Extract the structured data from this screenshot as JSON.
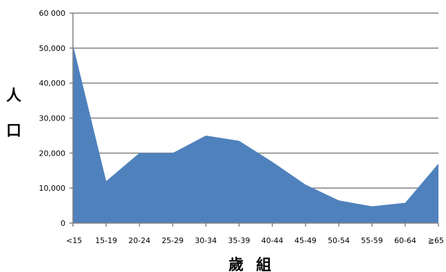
{
  "chart_data": {
    "type": "area",
    "categories": [
      "<15",
      "15-19",
      "20-24",
      "25-29",
      "30-34",
      "35-39",
      "40-44",
      "45-49",
      "50-54",
      "55-59",
      "60-64",
      "≧65"
    ],
    "series": [
      {
        "values": [
          51000,
          12000,
          20000,
          20000,
          25000,
          23500,
          17500,
          11000,
          6500,
          4800,
          5800,
          17000
        ]
      }
    ],
    "y_ticks": [
      {
        "value": 0,
        "label": "0"
      },
      {
        "value": 10000,
        "label": "10,000"
      },
      {
        "value": 20000,
        "label": "20,000"
      },
      {
        "value": 30000,
        "label": "30,000"
      },
      {
        "value": 40000,
        "label": "40,000"
      },
      {
        "value": 50000,
        "label": "50,000"
      },
      {
        "value": 60000,
        "label": "60 000"
      }
    ],
    "ylim": [
      0,
      60000
    ],
    "ylabel": "人口",
    "xlabel": "歲組",
    "grid": true,
    "colors": {
      "area": "#4f81bd",
      "grid": "#808080",
      "axis": "#808080"
    }
  }
}
